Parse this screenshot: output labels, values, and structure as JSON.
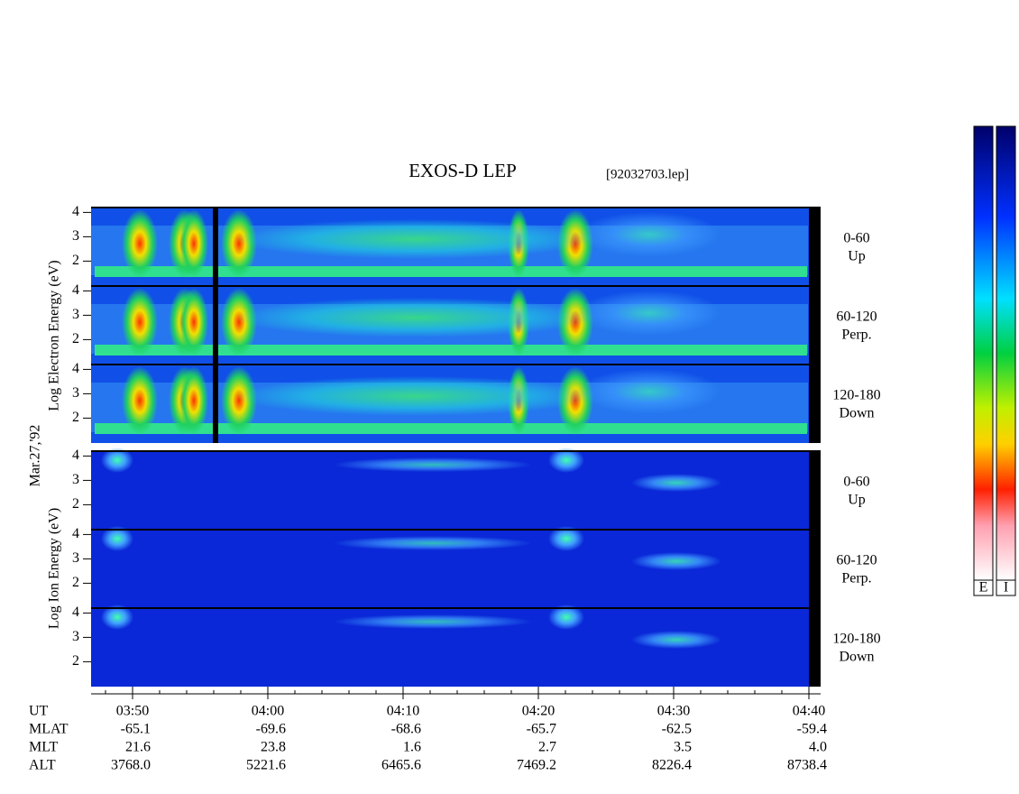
{
  "header": {
    "title": "EXOS-D LEP",
    "file": "[92032703.lep]"
  },
  "electron_axis_label": "Log  Electron  Energy (eV)",
  "date": "Mar.27,'92",
  "ion_axis_label": "Log  Ion  Energy (eV)",
  "energy_ticks": [
    4,
    3,
    2
  ],
  "pitch_angles": [
    {
      "range": "0-60",
      "direction": "Up"
    },
    {
      "range": "60-120",
      "direction": "Perp."
    },
    {
      "range": "120-180",
      "direction": "Down"
    }
  ],
  "orbit": {
    "labels": [
      "UT",
      "MLAT",
      "MLT",
      "ALT"
    ],
    "rows": [
      [
        "03:50",
        "04:00",
        "04:10",
        "04:20",
        "04:30",
        "04:40"
      ],
      [
        "-65.1",
        "-69.6",
        "-68.6",
        "-65.7",
        "-62.5",
        "-59.4"
      ],
      [
        "21.6",
        "23.8",
        "1.6",
        "2.7",
        "3.5",
        "4.0"
      ],
      [
        "3768.0",
        "5221.6",
        "6465.6",
        "7469.2",
        "8226.4",
        "8738.4"
      ]
    ]
  },
  "colorbar_labels": [
    "E",
    "I"
  ]
}
